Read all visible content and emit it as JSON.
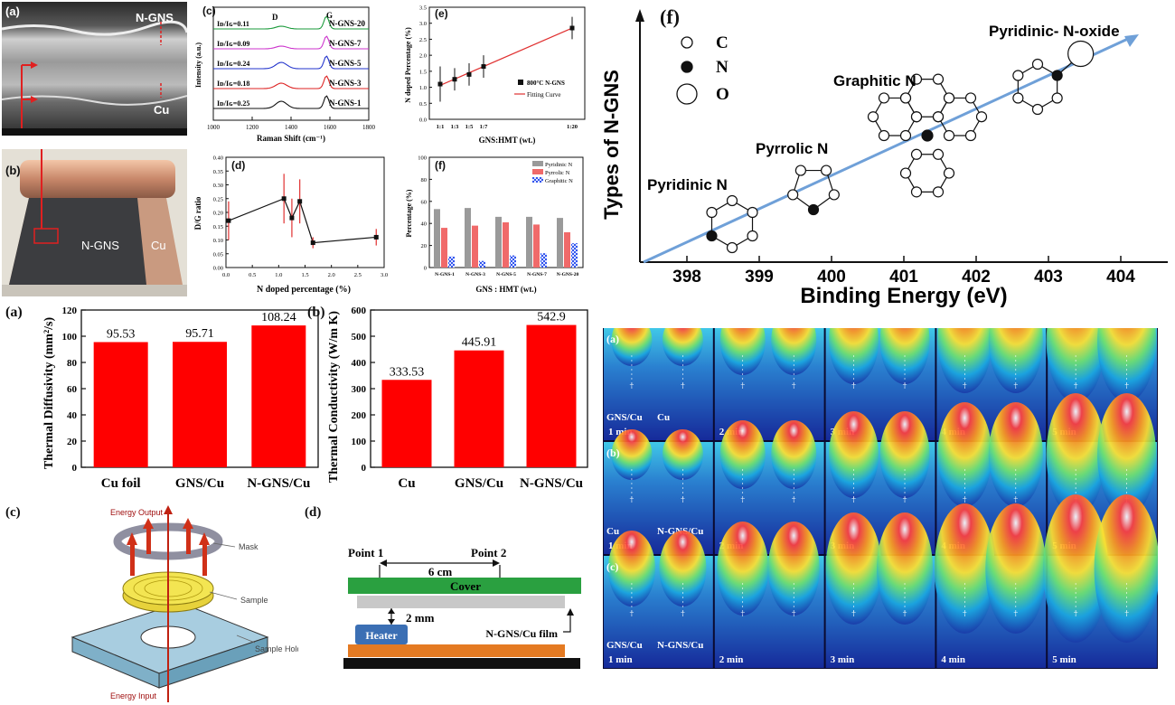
{
  "sem": {
    "label": "(a)",
    "ngns": "N-GNS",
    "cu": "Cu"
  },
  "photo": {
    "label": "(b)",
    "ngns": "N-GNS",
    "cu": "Cu"
  },
  "raman": {
    "label": "(c)",
    "xlabel": "Raman Shift (cm⁻¹)",
    "ylabel": "Intensity (a.u.)",
    "peak_d": "D",
    "peak_g": "G",
    "ratios": [
      "Iᴅ/Iɢ=0.11",
      "Iᴅ/Iɢ=0.09",
      "Iᴅ/Iɢ=0.24",
      "Iᴅ/Iɢ=0.18",
      "Iᴅ/Iɢ=0.25"
    ],
    "samples": [
      "N-GNS-20",
      "N-GNS-7",
      "N-GNS-5",
      "N-GNS-3",
      "N-GNS-1"
    ],
    "colors": [
      "#1a9a3a",
      "#cc33cc",
      "#2233cc",
      "#dd2222",
      "#111111"
    ],
    "xticks": [
      "1000",
      "1200",
      "1400",
      "1600",
      "1800"
    ]
  },
  "dg": {
    "label": "(d)",
    "xlabel": "N doped percentage (%)",
    "ylabel": "D/G ratio",
    "yticks": [
      "0.00",
      "0.05",
      "0.10",
      "0.15",
      "0.20",
      "0.25",
      "0.30",
      "0.35",
      "0.40"
    ],
    "xticks": [
      "0.0",
      "0.5",
      "1.0",
      "1.5",
      "2.0",
      "2.5",
      "3.0"
    ]
  },
  "ndope": {
    "label": "(e)",
    "xlabel": "GNS:HMT (wt.)",
    "ylabel": "N doped Percentage (%)",
    "legend_point": "800°C N-GNS",
    "legend_line": "Fitting Curve",
    "yticks": [
      "0.0",
      "0.5",
      "1.0",
      "1.5",
      "2.0",
      "2.5",
      "3.0",
      "3.5"
    ],
    "xticks": [
      "1:1",
      "1:3",
      "1:5",
      "1:7",
      "1:20"
    ]
  },
  "types_bar": {
    "label": "(f)",
    "xlabel": "GNS : HMT (wt.)",
    "ylabel": "Percentage (%)",
    "yticks": [
      "0",
      "20",
      "40",
      "60",
      "80",
      "100"
    ],
    "legend": [
      "Pyridinic N",
      "Pyrrolic N",
      "Graphitic N"
    ]
  },
  "types_diagram": {
    "label": "(f)",
    "ylabel": "Types of N-GNS",
    "xlabel": "Binding Energy (eV)",
    "key": {
      "c": "C",
      "n": "N",
      "o": "O"
    },
    "xticks": [
      "398",
      "399",
      "400",
      "401",
      "402",
      "403",
      "404"
    ],
    "species": [
      "Pyridinic N",
      "Pyrrolic N",
      "Graphitic N",
      "Pyridinic- N-oxide"
    ]
  },
  "diffusivity": {
    "label": "(a)",
    "ylabel": "Thermal Diffusivity (mm²/s)",
    "yticks": [
      "0",
      "20",
      "40",
      "60",
      "80",
      "100",
      "120"
    ]
  },
  "conductivity": {
    "label": "(b)",
    "ylabel": "Thermal Conductivity (W/m K)",
    "yticks": [
      "0",
      "100",
      "200",
      "300",
      "400",
      "500",
      "600"
    ]
  },
  "setup": {
    "label": "(c)",
    "output": "Energy Output",
    "input": "Energy Input",
    "mask": "Mask",
    "sample": "Sample",
    "holder": "Sample Holder"
  },
  "schematic": {
    "label": "(d)",
    "point1": "Point 1",
    "point2": "Point 2",
    "distance": "6 cm",
    "cover": "Cover",
    "gap": "2 mm",
    "heater": "Heater",
    "film": "N-GNS/Cu film"
  },
  "thermal": {
    "rows": [
      {
        "label": "(a)",
        "left": "GNS/Cu",
        "right": "Cu"
      },
      {
        "label": "(b)",
        "left": "Cu",
        "right": "N-GNS/Cu"
      },
      {
        "label": "(c)",
        "left": "GNS/Cu",
        "right": "N-GNS/Cu"
      }
    ],
    "times": [
      "1 min",
      "2 min",
      "3 min",
      "4 min",
      "5 min"
    ]
  },
  "chart_data": [
    {
      "type": "line",
      "title": "",
      "xlabel": "N doped percentage (%)",
      "ylabel": "D/G ratio",
      "xlim": [
        0,
        3
      ],
      "ylim": [
        0,
        0.4
      ],
      "x": [
        0.05,
        1.1,
        1.25,
        1.4,
        1.65,
        2.85
      ],
      "y": [
        0.17,
        0.25,
        0.18,
        0.24,
        0.09,
        0.11
      ],
      "err": [
        0.07,
        0.09,
        0.07,
        0.08,
        0.02,
        0.03
      ]
    },
    {
      "type": "scatter",
      "title": "",
      "xlabel": "GNS:HMT (wt.)",
      "ylabel": "N doped Percentage (%)",
      "ylim": [
        0,
        3.5
      ],
      "categories": [
        "1:1",
        "1:3",
        "1:5",
        "1:7",
        "1:20"
      ],
      "x": [
        1,
        3,
        5,
        7,
        20
      ],
      "y": [
        1.1,
        1.25,
        1.4,
        1.65,
        2.85
      ],
      "err": [
        0.55,
        0.35,
        0.35,
        0.35,
        0.35
      ],
      "series": [
        {
          "name": "800°C N-GNS",
          "values": [
            1.1,
            1.25,
            1.4,
            1.65,
            2.85
          ]
        },
        {
          "name": "Fitting Curve",
          "values": [
            1.06,
            1.24,
            1.42,
            1.6,
            2.85
          ]
        }
      ]
    },
    {
      "type": "bar",
      "title": "",
      "xlabel": "GNS : HMT (wt.)",
      "ylabel": "Percentage (%)",
      "ylim": [
        0,
        100
      ],
      "categories": [
        "N-GNS-1",
        "N-GNS-3",
        "N-GNS-5",
        "N-GNS-7",
        "N-GNS-20"
      ],
      "series": [
        {
          "name": "Pyridinic N",
          "values": [
            53,
            54,
            46,
            46,
            45
          ]
        },
        {
          "name": "Pyrrolic N",
          "values": [
            36,
            38,
            41,
            39,
            32
          ]
        },
        {
          "name": "Graphitic N",
          "values": [
            10,
            6,
            11,
            13,
            22
          ]
        }
      ],
      "colors": [
        "#9a9a9a",
        "#f06a6a",
        "#3355ee"
      ]
    },
    {
      "type": "bar",
      "title": "",
      "xlabel": "",
      "ylabel": "Thermal Diffusivity (mm²/s)",
      "ylim": [
        0,
        120
      ],
      "categories": [
        "Cu foil",
        "GNS/Cu",
        "N-GNS/Cu"
      ],
      "values": [
        95.53,
        95.71,
        108.24
      ],
      "labels": [
        "95.53",
        "95.71",
        "108.24"
      ]
    },
    {
      "type": "bar",
      "title": "",
      "xlabel": "",
      "ylabel": "Thermal Conductivity (W/m K)",
      "ylim": [
        0,
        600
      ],
      "categories": [
        "Cu",
        "GNS/Cu",
        "N-GNS/Cu"
      ],
      "values": [
        333.53,
        445.91,
        542.9
      ],
      "labels": [
        "333.53",
        "445.91",
        "542.9"
      ]
    }
  ]
}
